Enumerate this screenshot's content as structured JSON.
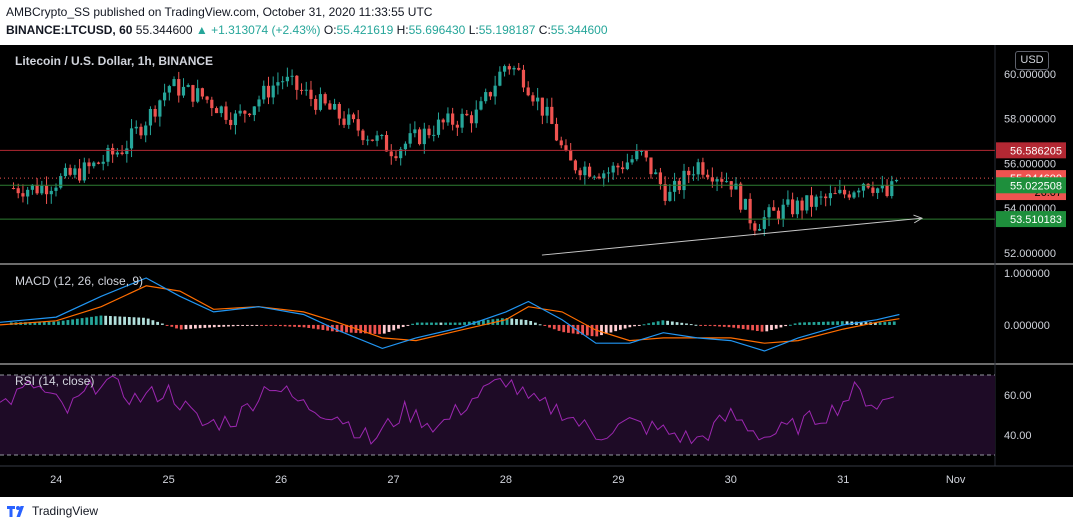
{
  "header": {
    "published_line": "AMBCrypto_SS published on TradingView.com, October 31, 2020 11:33:55 UTC",
    "symbol_interval": "BINANCE:LTCUSD, 60",
    "last": "55.344600",
    "change": "+1.313074 (+2.43%)",
    "o_label": "O:",
    "o": "55.421619",
    "h_label": "H:",
    "h": "55.696430",
    "l_label": "L:",
    "l": "55.198187",
    "c_label": "C:",
    "c": "55.344600"
  },
  "price_pane": {
    "title": "Litecoin / U.S. Dollar, 1h, BINANCE",
    "currency_button": "USD",
    "axis_ticks": [
      "60.000000",
      "58.000000",
      "56.000000",
      "54.000000",
      "52.000000"
    ],
    "price_tags": [
      {
        "label": "56.586205",
        "value": 56.586205,
        "color": "#b22833",
        "text_color": "#ffffff"
      },
      {
        "label": "55.344600",
        "value": 55.3446,
        "color": "#ef5350",
        "text_color": "#ffffff"
      },
      {
        "label": "26:07",
        "value": 54.72,
        "color": "#ef5350",
        "text_color": "#000000"
      },
      {
        "label": "55.022508",
        "value": 55.022508,
        "color": "#1e8f3c",
        "text_color": "#ffffff"
      },
      {
        "label": "53.510183",
        "value": 53.510183,
        "color": "#1e8f3c",
        "text_color": "#ffffff"
      }
    ],
    "resistance_line": {
      "value": 56.586205,
      "color": "#b22833"
    },
    "support_line": {
      "value": 53.510183,
      "color": "#2e7d32"
    },
    "last_price_line": {
      "value": 55.3446,
      "color": "#ef5350"
    },
    "level_55_line": {
      "value": 55.022508,
      "color": "#2e7d32"
    },
    "trendline": {
      "from_value": 51.9,
      "to_value": 53.55,
      "from_day": 28.32,
      "to_day": 31.7,
      "color": "#c8c8c8"
    },
    "colors": {
      "up": "#26a69a",
      "down": "#ef5350"
    }
  },
  "macd_pane": {
    "title": "MACD (12, 26, close, 9)",
    "axis_ticks": [
      "1.000000",
      "0.000000"
    ],
    "colors": {
      "macd": "#2196f3",
      "signal": "#ff6d00",
      "hist_up": "#26a69a",
      "hist_up_light": "#b2dfdb",
      "hist_down": "#ef5350",
      "hist_down_light": "#ffcdd2"
    }
  },
  "rsi_pane": {
    "title": "RSI (14, close)",
    "axis_ticks": [
      "60.00",
      "40.00"
    ],
    "colors": {
      "line": "#9c27b0",
      "band": "#1e0b26"
    }
  },
  "x_axis": {
    "labels": [
      "24",
      "25",
      "26",
      "27",
      "28",
      "29",
      "30",
      "31",
      "Nov"
    ]
  },
  "footer": {
    "brand": "TradingView"
  },
  "chart_data": {
    "type": "candlestick",
    "title": "Litecoin / U.S. Dollar, 1h, BINANCE",
    "x": [
      23.85,
      24.3,
      24.6,
      24.85,
      25.0,
      25.3,
      25.6,
      26.0,
      26.4,
      26.7,
      27.0,
      27.4,
      27.75,
      28.0,
      28.15,
      28.4,
      28.55,
      28.9,
      29.2,
      29.45,
      29.7,
      30.0,
      30.2,
      30.45,
      30.7,
      31.0,
      31.2,
      31.4,
      31.48
    ],
    "close": [
      54.9,
      55.8,
      56.7,
      58.3,
      59.5,
      59.0,
      58.0,
      59.8,
      58.5,
      57.5,
      56.6,
      57.7,
      58.2,
      60.5,
      59.9,
      57.8,
      56.0,
      55.6,
      56.4,
      54.5,
      56.0,
      55.2,
      53.3,
      53.9,
      54.2,
      54.6,
      55.3,
      54.5,
      55.34
    ],
    "ylim": [
      51.5,
      61.3
    ],
    "xlim": [
      23.5,
      32.35
    ],
    "macd": {
      "ylim": [
        -0.75,
        1.15
      ],
      "x": [
        23.5,
        24.0,
        24.4,
        24.8,
        25.1,
        25.4,
        25.8,
        26.2,
        26.5,
        26.9,
        27.2,
        27.6,
        28.0,
        28.2,
        28.5,
        28.8,
        29.1,
        29.4,
        29.7,
        30.0,
        30.3,
        30.6,
        31.0,
        31.3,
        31.5
      ],
      "macd_line": [
        0.05,
        0.15,
        0.55,
        0.9,
        0.55,
        0.25,
        0.35,
        0.2,
        -0.1,
        -0.45,
        -0.25,
        -0.05,
        0.25,
        0.45,
        0.1,
        -0.35,
        -0.35,
        -0.15,
        -0.25,
        -0.3,
        -0.5,
        -0.25,
        0.0,
        0.1,
        0.2
      ],
      "signal_line": [
        0.0,
        0.08,
        0.35,
        0.75,
        0.65,
        0.3,
        0.35,
        0.25,
        0.05,
        -0.25,
        -0.3,
        -0.1,
        0.1,
        0.35,
        0.25,
        -0.1,
        -0.3,
        -0.25,
        -0.25,
        -0.25,
        -0.35,
        -0.3,
        -0.08,
        0.05,
        0.12
      ]
    },
    "rsi": {
      "ylim": [
        25,
        75
      ],
      "overbought": 70,
      "oversold": 30,
      "x": [
        23.5,
        23.8,
        24.1,
        24.4,
        24.7,
        25.0,
        25.3,
        25.6,
        25.9,
        26.2,
        26.5,
        26.8,
        27.1,
        27.4,
        27.7,
        28.0,
        28.2,
        28.5,
        28.8,
        29.1,
        29.4,
        29.7,
        30.0,
        30.3,
        30.6,
        30.9,
        31.1,
        31.3,
        31.48
      ],
      "values": [
        55,
        65,
        52,
        68,
        58,
        62,
        45,
        48,
        66,
        55,
        50,
        37,
        52,
        44,
        58,
        68,
        57,
        52,
        40,
        46,
        42,
        37,
        50,
        39,
        45,
        52,
        62,
        55,
        60
      ]
    }
  }
}
